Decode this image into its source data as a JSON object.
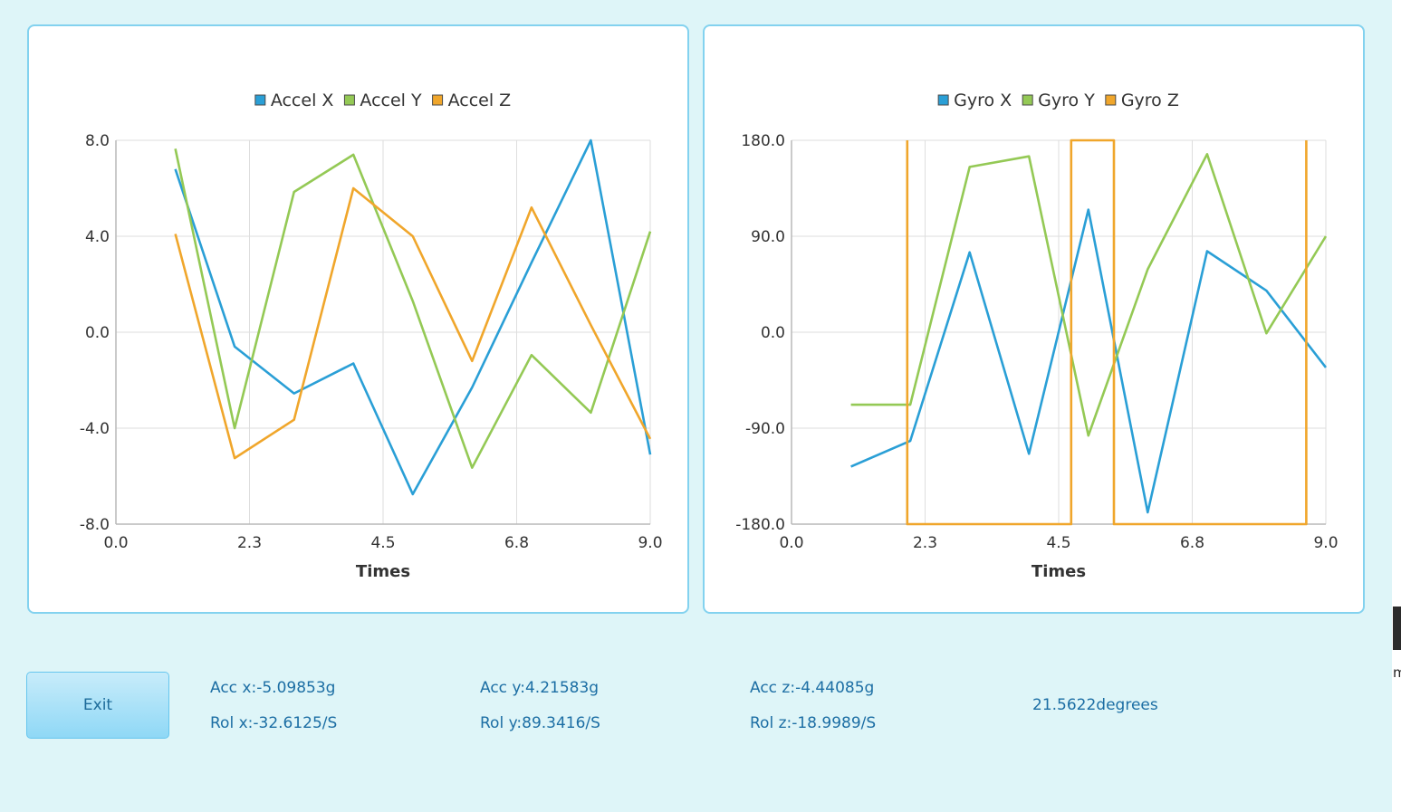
{
  "colors": {
    "window_bg": "#def5f8",
    "panel_border": "#83d2ef",
    "series_x": "#2a9fd6",
    "series_y": "#94c955",
    "series_z": "#f0a62b",
    "grid": "#dedede",
    "readout_text": "#1c6ea4"
  },
  "chart_data": [
    {
      "type": "line",
      "title": "",
      "xlabel": "Times",
      "ylabel": "",
      "xlim": [
        0.0,
        9.0
      ],
      "ylim": [
        -8.0,
        8.0
      ],
      "x_ticks": [
        "0.0",
        "2.3",
        "4.5",
        "6.8",
        "9.0"
      ],
      "y_ticks": [
        "8.0",
        "4.0",
        "0.0",
        "-4.0",
        "-8.0"
      ],
      "legend_position": "top-center",
      "grid": true,
      "series": [
        {
          "name": "Accel X",
          "color": "#2a9fd6",
          "x": [
            1,
            2,
            3,
            4,
            5,
            6,
            7,
            8,
            9
          ],
          "y": [
            6.8,
            -0.6,
            -2.55,
            -1.3,
            -6.75,
            -2.3,
            2.9,
            8.0,
            -5.1
          ]
        },
        {
          "name": "Accel Y",
          "color": "#94c955",
          "x": [
            1,
            2,
            3,
            4,
            5,
            6,
            7,
            8,
            9
          ],
          "y": [
            7.65,
            -4.0,
            5.85,
            7.4,
            1.3,
            -5.65,
            -0.95,
            -3.35,
            4.2
          ]
        },
        {
          "name": "Accel Z",
          "color": "#f0a62b",
          "x": [
            1,
            2,
            3,
            4,
            5,
            6,
            7,
            8,
            9
          ],
          "y": [
            4.1,
            -5.25,
            -3.65,
            6.0,
            4.0,
            -1.2,
            5.2,
            0.3,
            -4.45
          ]
        }
      ]
    },
    {
      "type": "line",
      "title": "",
      "xlabel": "Times",
      "ylabel": "",
      "xlim": [
        0.0,
        9.0
      ],
      "ylim": [
        -180.0,
        180.0
      ],
      "x_ticks": [
        "0.0",
        "2.3",
        "4.5",
        "6.8",
        "9.0"
      ],
      "y_ticks": [
        "180.0",
        "90.0",
        "0.0",
        "-90.0",
        "-180.0"
      ],
      "legend_position": "top-center",
      "grid": true,
      "series": [
        {
          "name": "Gyro X",
          "color": "#2a9fd6",
          "x": [
            1,
            2,
            3,
            4,
            5,
            6,
            7,
            8,
            9
          ],
          "y": [
            -126,
            -102,
            75,
            -114,
            115,
            -169,
            76,
            39,
            -33
          ]
        },
        {
          "name": "Gyro Y",
          "color": "#94c955",
          "x": [
            1,
            2,
            3,
            4,
            5,
            6,
            7,
            8,
            9
          ],
          "y": [
            -68,
            -68,
            155,
            165,
            -97,
            59,
            167,
            -1,
            90
          ]
        },
        {
          "name": "Gyro Z",
          "color": "#f0a62b",
          "x": [
            1.95,
            1.95,
            4.71,
            4.71,
            5.43,
            5.43,
            8.67,
            8.67
          ],
          "y": [
            180,
            -180,
            -180,
            180,
            180,
            -180,
            -180,
            180
          ]
        }
      ]
    }
  ],
  "controls": {
    "exit_label": "Exit"
  },
  "readouts": {
    "acc_x": "Acc x:-5.09853g",
    "acc_y": "Acc y:4.21583g",
    "acc_z": "Acc z:-4.44085g",
    "rol_x": "Rol x:-32.6125/S",
    "rol_y": "Rol y:89.3416/S",
    "rol_z": "Rol z:-18.9989/S",
    "angle": "21.5622degrees"
  },
  "edge_glyph": "m"
}
